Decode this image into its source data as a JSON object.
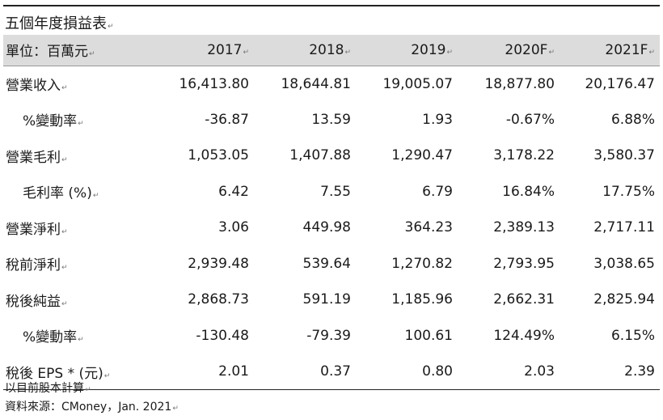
{
  "title": "五個年度損益表",
  "header": {
    "unit_label": "單位：百萬元",
    "years": [
      "2017",
      "2018",
      "2019",
      "2020F",
      "2021F"
    ]
  },
  "rows": [
    {
      "label": "營業收入",
      "values": [
        "16,413.80",
        "18,644.81",
        "19,005.07",
        "18,877.80",
        "20,176.47"
      ]
    },
    {
      "label": "%變動率",
      "values": [
        "-36.87",
        "13.59",
        "1.93",
        "-0.67%",
        "6.88%"
      ]
    },
    {
      "label": "營業毛利",
      "values": [
        "1,053.05",
        "1,407.88",
        "1,290.47",
        "3,178.22",
        "3,580.37"
      ]
    },
    {
      "label": "毛利率 (%)",
      "values": [
        "6.42",
        "7.55",
        "6.79",
        "16.84%",
        "17.75%"
      ]
    },
    {
      "label": "營業淨利",
      "values": [
        "3.06",
        "449.98",
        "364.23",
        "2,389.13",
        "2,717.11"
      ]
    },
    {
      "label": "稅前淨利",
      "values": [
        "2,939.48",
        "539.64",
        "1,270.82",
        "2,793.95",
        "3,038.65"
      ]
    },
    {
      "label": "稅後純益",
      "values": [
        "2,868.73",
        "591.19",
        "1,185.96",
        "2,662.31",
        "2,825.94"
      ]
    },
    {
      "label": "%變動率",
      "values": [
        "-130.48",
        "-79.39",
        "100.61",
        "124.49%",
        "6.15%"
      ]
    },
    {
      "label": "稅後 EPS * (元)",
      "values": [
        "2.01",
        "0.37",
        "0.80",
        "2.03",
        "2.39"
      ]
    }
  ],
  "notes": {
    "basis": "以目前股本計算",
    "source": "資料來源：CMoney，Jan. 2021"
  }
}
